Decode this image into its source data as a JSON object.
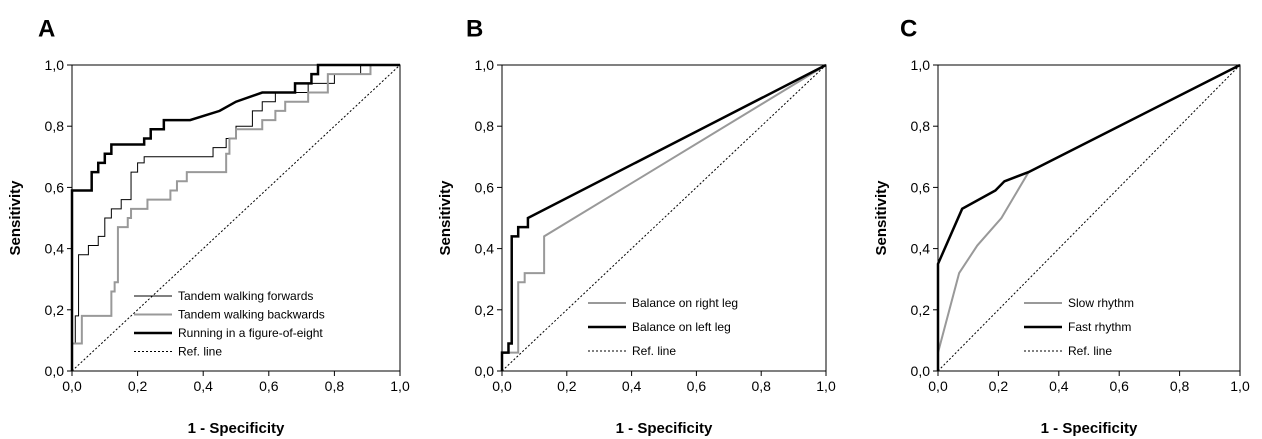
{
  "chart_data": [
    {
      "type": "line",
      "panel_label": "A",
      "xlabel": "1 - Specificity",
      "ylabel": "Sensitivity",
      "xlim": [
        0,
        1
      ],
      "ylim": [
        0,
        1
      ],
      "x_ticks": [
        "0,0",
        "0,2",
        "0,4",
        "0,6",
        "0,8",
        "1,0"
      ],
      "y_ticks": [
        "0,0",
        "0,2",
        "0,4",
        "0,6",
        "0,8",
        "1,0"
      ],
      "legend_position": "bottom-right",
      "series": [
        {
          "name": "Tandem walking forwards",
          "color": "#000000",
          "width": "thin",
          "points": [
            [
              0,
              0
            ],
            [
              0,
              0.09
            ],
            [
              0.01,
              0.09
            ],
            [
              0.01,
              0.18
            ],
            [
              0.02,
              0.18
            ],
            [
              0.02,
              0.38
            ],
            [
              0.05,
              0.38
            ],
            [
              0.05,
              0.41
            ],
            [
              0.08,
              0.41
            ],
            [
              0.08,
              0.44
            ],
            [
              0.1,
              0.44
            ],
            [
              0.1,
              0.5
            ],
            [
              0.12,
              0.5
            ],
            [
              0.12,
              0.53
            ],
            [
              0.15,
              0.53
            ],
            [
              0.15,
              0.56
            ],
            [
              0.18,
              0.56
            ],
            [
              0.18,
              0.65
            ],
            [
              0.2,
              0.65
            ],
            [
              0.2,
              0.68
            ],
            [
              0.22,
              0.68
            ],
            [
              0.22,
              0.7
            ],
            [
              0.43,
              0.7
            ],
            [
              0.43,
              0.73
            ],
            [
              0.47,
              0.73
            ],
            [
              0.47,
              0.76
            ],
            [
              0.5,
              0.76
            ],
            [
              0.5,
              0.8
            ],
            [
              0.55,
              0.8
            ],
            [
              0.55,
              0.85
            ],
            [
              0.58,
              0.85
            ],
            [
              0.58,
              0.88
            ],
            [
              0.62,
              0.88
            ],
            [
              0.62,
              0.91
            ],
            [
              0.72,
              0.91
            ],
            [
              0.72,
              0.94
            ],
            [
              0.8,
              0.94
            ],
            [
              0.8,
              0.97
            ],
            [
              0.88,
              0.97
            ],
            [
              0.88,
              1.0
            ],
            [
              1.0,
              1.0
            ]
          ]
        },
        {
          "name": "Tandem walking backwards",
          "color": "#999999",
          "width": "medium",
          "points": [
            [
              0,
              0
            ],
            [
              0,
              0.09
            ],
            [
              0.03,
              0.09
            ],
            [
              0.03,
              0.18
            ],
            [
              0.12,
              0.18
            ],
            [
              0.12,
              0.26
            ],
            [
              0.13,
              0.26
            ],
            [
              0.13,
              0.29
            ],
            [
              0.14,
              0.29
            ],
            [
              0.14,
              0.47
            ],
            [
              0.17,
              0.47
            ],
            [
              0.17,
              0.5
            ],
            [
              0.18,
              0.5
            ],
            [
              0.18,
              0.53
            ],
            [
              0.23,
              0.53
            ],
            [
              0.23,
              0.56
            ],
            [
              0.3,
              0.56
            ],
            [
              0.3,
              0.59
            ],
            [
              0.32,
              0.59
            ],
            [
              0.32,
              0.62
            ],
            [
              0.35,
              0.62
            ],
            [
              0.35,
              0.65
            ],
            [
              0.47,
              0.65
            ],
            [
              0.47,
              0.71
            ],
            [
              0.48,
              0.71
            ],
            [
              0.48,
              0.76
            ],
            [
              0.5,
              0.76
            ],
            [
              0.5,
              0.79
            ],
            [
              0.58,
              0.79
            ],
            [
              0.58,
              0.82
            ],
            [
              0.62,
              0.82
            ],
            [
              0.62,
              0.85
            ],
            [
              0.65,
              0.85
            ],
            [
              0.65,
              0.88
            ],
            [
              0.72,
              0.88
            ],
            [
              0.72,
              0.91
            ],
            [
              0.78,
              0.91
            ],
            [
              0.78,
              0.97
            ],
            [
              0.91,
              0.97
            ],
            [
              0.91,
              1.0
            ],
            [
              1.0,
              1.0
            ]
          ]
        },
        {
          "name": "Running in a figure-of-eight",
          "color": "#000000",
          "width": "thick",
          "points": [
            [
              0,
              0
            ],
            [
              0,
              0.59
            ],
            [
              0.06,
              0.59
            ],
            [
              0.06,
              0.65
            ],
            [
              0.08,
              0.65
            ],
            [
              0.08,
              0.68
            ],
            [
              0.1,
              0.68
            ],
            [
              0.1,
              0.71
            ],
            [
              0.12,
              0.71
            ],
            [
              0.12,
              0.74
            ],
            [
              0.22,
              0.74
            ],
            [
              0.22,
              0.76
            ],
            [
              0.24,
              0.76
            ],
            [
              0.24,
              0.79
            ],
            [
              0.28,
              0.79
            ],
            [
              0.28,
              0.82
            ],
            [
              0.36,
              0.82
            ],
            [
              0.45,
              0.85
            ],
            [
              0.5,
              0.88
            ],
            [
              0.58,
              0.91
            ],
            [
              0.68,
              0.91
            ],
            [
              0.68,
              0.94
            ],
            [
              0.73,
              0.94
            ],
            [
              0.73,
              0.97
            ],
            [
              0.75,
              0.97
            ],
            [
              0.75,
              1.0
            ],
            [
              1.0,
              1.0
            ]
          ]
        },
        {
          "name": "Ref. line",
          "color": "#000000",
          "width": "dotted",
          "points": [
            [
              0,
              0
            ],
            [
              1,
              1
            ]
          ]
        }
      ]
    },
    {
      "type": "line",
      "panel_label": "B",
      "xlabel": "1 - Specificity",
      "ylabel": "Sensitivity",
      "xlim": [
        0,
        1
      ],
      "ylim": [
        0,
        1
      ],
      "x_ticks": [
        "0,0",
        "0,2",
        "0,4",
        "0,6",
        "0,8",
        "1,0"
      ],
      "y_ticks": [
        "0,0",
        "0,2",
        "0,4",
        "0,6",
        "0,8",
        "1,0"
      ],
      "legend_position": "bottom-right",
      "series": [
        {
          "name": "Balance on right leg",
          "color": "#999999",
          "width": "medium",
          "points": [
            [
              0,
              0
            ],
            [
              0,
              0.06
            ],
            [
              0.05,
              0.06
            ],
            [
              0.05,
              0.29
            ],
            [
              0.07,
              0.29
            ],
            [
              0.07,
              0.32
            ],
            [
              0.13,
              0.32
            ],
            [
              0.13,
              0.44
            ],
            [
              1.0,
              1.0
            ]
          ]
        },
        {
          "name": "Balance on left leg",
          "color": "#000000",
          "width": "thick",
          "points": [
            [
              0,
              0
            ],
            [
              0,
              0.06
            ],
            [
              0.02,
              0.06
            ],
            [
              0.02,
              0.09
            ],
            [
              0.03,
              0.09
            ],
            [
              0.03,
              0.44
            ],
            [
              0.05,
              0.44
            ],
            [
              0.05,
              0.47
            ],
            [
              0.08,
              0.47
            ],
            [
              0.08,
              0.5
            ],
            [
              1.0,
              1.0
            ]
          ]
        },
        {
          "name": "Ref. line",
          "color": "#000000",
          "width": "dotted",
          "points": [
            [
              0,
              0
            ],
            [
              1,
              1
            ]
          ]
        }
      ]
    },
    {
      "type": "line",
      "panel_label": "C",
      "xlabel": "1 - Specificity",
      "ylabel": "Sensitivity",
      "xlim": [
        0,
        1
      ],
      "ylim": [
        0,
        1
      ],
      "x_ticks": [
        "0,0",
        "0,2",
        "0,4",
        "0,6",
        "0,8",
        "1,0"
      ],
      "y_ticks": [
        "0,0",
        "0,2",
        "0,4",
        "0,6",
        "0,8",
        "1,0"
      ],
      "legend_position": "bottom-right",
      "series": [
        {
          "name": "Slow rhythm",
          "color": "#999999",
          "width": "medium",
          "points": [
            [
              0,
              0
            ],
            [
              0,
              0.06
            ],
            [
              0.07,
              0.32
            ],
            [
              0.13,
              0.41
            ],
            [
              0.21,
              0.5
            ],
            [
              0.3,
              0.65
            ],
            [
              1.0,
              1.0
            ]
          ]
        },
        {
          "name": "Fast rhythm",
          "color": "#000000",
          "width": "thick",
          "points": [
            [
              0,
              0
            ],
            [
              0,
              0.35
            ],
            [
              0.08,
              0.53
            ],
            [
              0.19,
              0.59
            ],
            [
              0.22,
              0.62
            ],
            [
              0.3,
              0.65
            ],
            [
              1.0,
              1.0
            ]
          ]
        },
        {
          "name": "Ref. line",
          "color": "#000000",
          "width": "dotted",
          "points": [
            [
              0,
              0
            ],
            [
              1,
              1
            ]
          ]
        }
      ]
    }
  ]
}
